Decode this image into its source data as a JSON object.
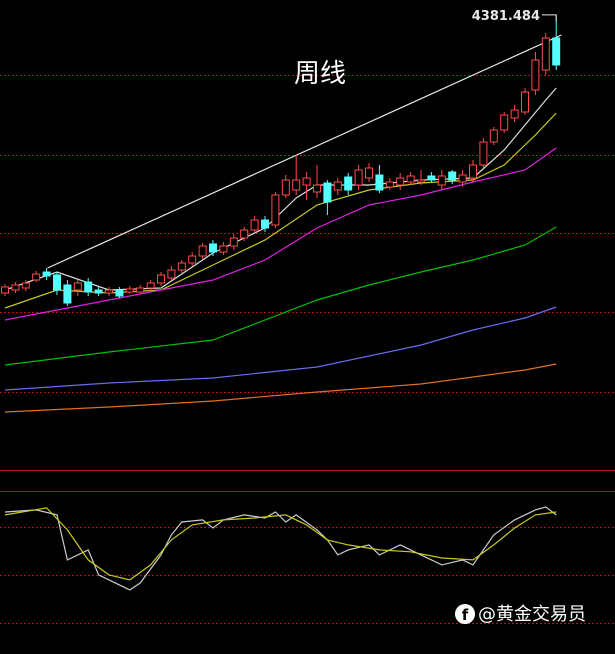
{
  "chart_data": {
    "type": "candlestick",
    "title": "周线",
    "high_label": "4381.484",
    "watermark": "@黄金交易员",
    "up_color": "#ff4a4a",
    "down_color": "#54ffff",
    "ylim": [
      2106,
      4456
    ],
    "hlines": [
      4081,
      3681,
      3291,
      2896,
      2496
    ],
    "grid_color": "#b01818",
    "candles": {
      "open": [
        2991,
        3006,
        3016,
        3056,
        3096,
        3081,
        3031,
        3006,
        3046,
        3006,
        2991,
        3006,
        2996,
        2996,
        3016,
        3041,
        3066,
        3106,
        3141,
        3176,
        3236,
        3196,
        3226,
        3266,
        3306,
        3356,
        3331,
        3481,
        3506,
        3531,
        3496,
        3541,
        3506,
        3571,
        3531,
        3566,
        3581,
        3521,
        3531,
        3546,
        3546,
        3576,
        3531,
        3596,
        3546,
        3566,
        3631,
        3746,
        3806,
        3866,
        3896,
        4006,
        4106,
        4266
      ],
      "high": [
        3036,
        3046,
        3056,
        3101,
        3116,
        3096,
        3056,
        3056,
        3066,
        3026,
        3021,
        3021,
        3026,
        3031,
        3056,
        3096,
        3126,
        3156,
        3196,
        3241,
        3256,
        3246,
        3286,
        3321,
        3376,
        3376,
        3496,
        3581,
        3681,
        3596,
        3631,
        3556,
        3566,
        3591,
        3631,
        3641,
        3631,
        3566,
        3591,
        3596,
        3606,
        3596,
        3606,
        3606,
        3606,
        3656,
        3766,
        3821,
        3896,
        3931,
        4016,
        4196,
        4291,
        4381.484
      ],
      "low": [
        2976,
        2991,
        3001,
        3046,
        3056,
        2981,
        2926,
        2976,
        2976,
        2976,
        2976,
        2966,
        2986,
        2986,
        3001,
        3026,
        3056,
        3091,
        3126,
        3161,
        3176,
        3181,
        3206,
        3251,
        3296,
        3296,
        3316,
        3466,
        3481,
        3456,
        3466,
        3381,
        3481,
        3481,
        3506,
        3546,
        3491,
        3506,
        3506,
        3531,
        3531,
        3546,
        3506,
        3536,
        3521,
        3546,
        3616,
        3731,
        3791,
        3846,
        3881,
        3981,
        4081,
        4106
      ],
      "close": [
        3021,
        3031,
        3041,
        3086,
        3076,
        3006,
        2941,
        3041,
        2996,
        2991,
        3006,
        2976,
        3011,
        3016,
        3041,
        3081,
        3106,
        3141,
        3176,
        3226,
        3196,
        3226,
        3266,
        3306,
        3356,
        3316,
        3481,
        3556,
        3556,
        3566,
        3531,
        3446,
        3546,
        3506,
        3606,
        3616,
        3506,
        3546,
        3566,
        3576,
        3556,
        3556,
        3576,
        3556,
        3581,
        3631,
        3746,
        3806,
        3881,
        3906,
        3996,
        4156,
        4266,
        4131
      ]
    },
    "lines": [
      {
        "color": "#dddddd",
        "x": [
          0,
          5,
          10,
          15,
          20,
          25,
          28,
          30,
          35,
          40,
          45,
          48,
          50,
          52,
          53
        ],
        "values": [
          3006,
          3096,
          3006,
          3016,
          3191,
          3316,
          3466,
          3531,
          3531,
          3556,
          3566,
          3706,
          3831,
          3956,
          4016
        ]
      },
      {
        "color": "#c8c820",
        "x": [
          0,
          5,
          10,
          15,
          20,
          25,
          30,
          35,
          40,
          45,
          48,
          51,
          53
        ],
        "values": [
          2916,
          3006,
          2991,
          3006,
          3131,
          3256,
          3431,
          3506,
          3541,
          3556,
          3631,
          3781,
          3891
        ]
      },
      {
        "color": "#e020e0",
        "x": [
          0,
          5,
          10,
          15,
          20,
          25,
          30,
          35,
          40,
          45,
          50,
          53
        ],
        "values": [
          2856,
          2906,
          2956,
          3006,
          3056,
          3156,
          3316,
          3431,
          3481,
          3546,
          3606,
          3716
        ]
      },
      {
        "color": "#00c000",
        "x": [
          0,
          10,
          20,
          25,
          30,
          35,
          40,
          45,
          50,
          53
        ],
        "values": [
          2631,
          2696,
          2756,
          2856,
          2956,
          3031,
          3096,
          3156,
          3231,
          3321
        ]
      },
      {
        "color": "#6a6aee",
        "x": [
          0,
          10,
          20,
          30,
          40,
          45,
          50,
          53
        ],
        "values": [
          2506,
          2541,
          2566,
          2621,
          2731,
          2806,
          2866,
          2921
        ]
      },
      {
        "color": "#e07020",
        "x": [
          0,
          10,
          20,
          30,
          40,
          45,
          50,
          53
        ],
        "values": [
          2396,
          2421,
          2451,
          2496,
          2536,
          2571,
          2606,
          2636
        ]
      }
    ],
    "trendline": {
      "color": "#e8e8e8",
      "x": [
        4.1,
        53.5
      ],
      "values": [
        3116,
        4281
      ]
    },
    "indicator": {
      "ylim": [
        1,
        102
      ],
      "hlines": [
        80,
        50,
        20
      ],
      "lines": [
        {
          "color": "#cccccc",
          "x": [
            0,
            3,
            5,
            6,
            8,
            9,
            11,
            12,
            13,
            15,
            16,
            17,
            19,
            20,
            21,
            23,
            25,
            26,
            27,
            28,
            30,
            31,
            32,
            33,
            35,
            36,
            38,
            40,
            42,
            44,
            45,
            47,
            49,
            51,
            52,
            53
          ],
          "values": [
            89,
            90.3,
            87.2,
            59.3,
            65.5,
            50,
            43.8,
            40.7,
            45,
            62.4,
            74.8,
            82.8,
            84.1,
            79.1,
            84.1,
            87.2,
            85.3,
            89,
            82.8,
            87.2,
            77.9,
            71.7,
            62.4,
            65.5,
            68.6,
            62.4,
            68.6,
            62.4,
            56.2,
            59.3,
            56.2,
            74.8,
            84.1,
            90.3,
            92.1,
            87.2
          ]
        },
        {
          "color": "#c8c820",
          "x": [
            0,
            4,
            6,
            8,
            10,
            12,
            14,
            16,
            18,
            21,
            24,
            27,
            29,
            31,
            33,
            36,
            39,
            42,
            45,
            47,
            49,
            51,
            53
          ],
          "values": [
            87.2,
            91.5,
            77.9,
            59.3,
            50,
            46.9,
            56.2,
            71.7,
            81,
            84.1,
            85.3,
            87.2,
            81,
            71.7,
            68.6,
            65.5,
            64.3,
            60.5,
            59.3,
            68.6,
            79.1,
            87.2,
            89
          ]
        }
      ]
    }
  }
}
